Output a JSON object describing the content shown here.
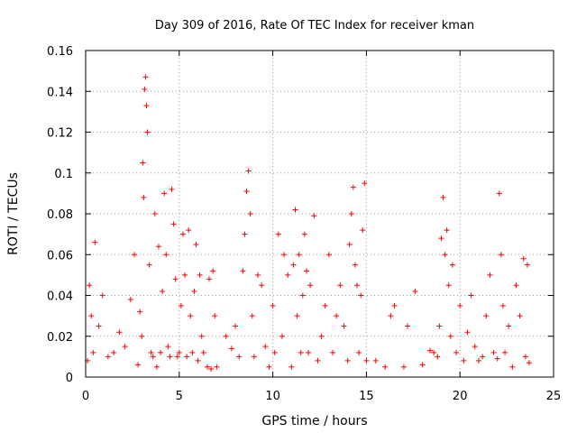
{
  "chart_data": {
    "type": "scatter",
    "title": "Day 309 of 2016, Rate Of TEC Index for receiver kman",
    "xlabel": "GPS time / hours",
    "ylabel": "ROTI / TECUs",
    "xlim": [
      0,
      25
    ],
    "ylim": [
      0,
      0.16
    ],
    "xticks": [
      0,
      5,
      10,
      15,
      20,
      25
    ],
    "xtick_labels": [
      "0",
      "5",
      "10",
      "15",
      "20",
      "25"
    ],
    "yticks": [
      0,
      0.02,
      0.04,
      0.06,
      0.08,
      0.1,
      0.12,
      0.14,
      0.16
    ],
    "ytick_labels": [
      "0",
      "0.02",
      "0.04",
      "0.06",
      "0.08",
      "0.1",
      "0.12",
      "0.14",
      "0.16"
    ],
    "grid": true,
    "marker": "+",
    "color": "#ff0000",
    "x": [
      0.1,
      0.2,
      0.3,
      0.4,
      0.5,
      0.7,
      0.9,
      1.2,
      1.5,
      1.8,
      2.1,
      2.4,
      2.6,
      2.8,
      2.9,
      3.0,
      3.05,
      3.1,
      3.15,
      3.2,
      3.25,
      3.3,
      3.4,
      3.5,
      3.6,
      3.7,
      3.8,
      3.9,
      4.0,
      4.1,
      4.2,
      4.3,
      4.4,
      4.5,
      4.6,
      4.7,
      4.8,
      4.9,
      5.0,
      5.1,
      5.2,
      5.3,
      5.4,
      5.5,
      5.6,
      5.7,
      5.8,
      5.9,
      6.0,
      6.1,
      6.2,
      6.3,
      6.5,
      6.6,
      6.7,
      6.8,
      6.9,
      7.0,
      7.5,
      7.8,
      8.0,
      8.2,
      8.4,
      8.5,
      8.6,
      8.7,
      8.8,
      8.9,
      9.0,
      9.2,
      9.4,
      9.6,
      9.8,
      10.0,
      10.1,
      10.3,
      10.5,
      10.6,
      10.8,
      11.0,
      11.1,
      11.2,
      11.3,
      11.4,
      11.5,
      11.6,
      11.7,
      11.8,
      11.9,
      12.0,
      12.2,
      12.4,
      12.6,
      12.8,
      13.0,
      13.2,
      13.4,
      13.6,
      13.8,
      14.0,
      14.1,
      14.2,
      14.3,
      14.4,
      14.5,
      14.6,
      14.7,
      14.8,
      14.9,
      15.0,
      15.5,
      16.0,
      16.3,
      16.5,
      17.0,
      17.2,
      17.6,
      18.0,
      18.4,
      18.6,
      18.8,
      18.9,
      19.0,
      19.1,
      19.2,
      19.3,
      19.4,
      19.5,
      19.6,
      19.8,
      20.0,
      20.2,
      20.4,
      20.6,
      20.8,
      21.0,
      21.2,
      21.4,
      21.6,
      21.8,
      22.0,
      22.1,
      22.2,
      22.3,
      22.4,
      22.6,
      22.8,
      23.0,
      23.2,
      23.4,
      23.5,
      23.6,
      23.7
    ],
    "y": [
      0.008,
      0.045,
      0.03,
      0.012,
      0.066,
      0.025,
      0.04,
      0.01,
      0.012,
      0.022,
      0.015,
      0.038,
      0.06,
      0.006,
      0.032,
      0.02,
      0.105,
      0.088,
      0.141,
      0.147,
      0.133,
      0.12,
      0.055,
      0.012,
      0.01,
      0.08,
      0.005,
      0.064,
      0.012,
      0.042,
      0.09,
      0.06,
      0.015,
      0.01,
      0.092,
      0.075,
      0.048,
      0.01,
      0.012,
      0.035,
      0.07,
      0.05,
      0.01,
      0.072,
      0.03,
      0.012,
      0.042,
      0.065,
      0.008,
      0.05,
      0.02,
      0.012,
      0.005,
      0.048,
      0.004,
      0.052,
      0.03,
      0.005,
      0.02,
      0.014,
      0.025,
      0.01,
      0.052,
      0.07,
      0.091,
      0.101,
      0.08,
      0.03,
      0.01,
      0.05,
      0.045,
      0.015,
      0.005,
      0.035,
      0.012,
      0.07,
      0.02,
      0.06,
      0.05,
      0.005,
      0.055,
      0.082,
      0.03,
      0.06,
      0.012,
      0.04,
      0.07,
      0.052,
      0.012,
      0.045,
      0.079,
      0.008,
      0.02,
      0.035,
      0.06,
      0.012,
      0.03,
      0.045,
      0.025,
      0.008,
      0.065,
      0.08,
      0.093,
      0.055,
      0.045,
      0.012,
      0.04,
      0.072,
      0.095,
      0.008,
      0.008,
      0.005,
      0.03,
      0.035,
      0.005,
      0.025,
      0.042,
      0.006,
      0.013,
      0.012,
      0.01,
      0.025,
      0.068,
      0.088,
      0.06,
      0.072,
      0.045,
      0.02,
      0.055,
      0.012,
      0.035,
      0.008,
      0.022,
      0.04,
      0.015,
      0.008,
      0.01,
      0.03,
      0.05,
      0.012,
      0.009,
      0.09,
      0.06,
      0.035,
      0.012,
      0.025,
      0.005,
      0.045,
      0.03,
      0.058,
      0.01,
      0.055,
      0.007
    ]
  }
}
